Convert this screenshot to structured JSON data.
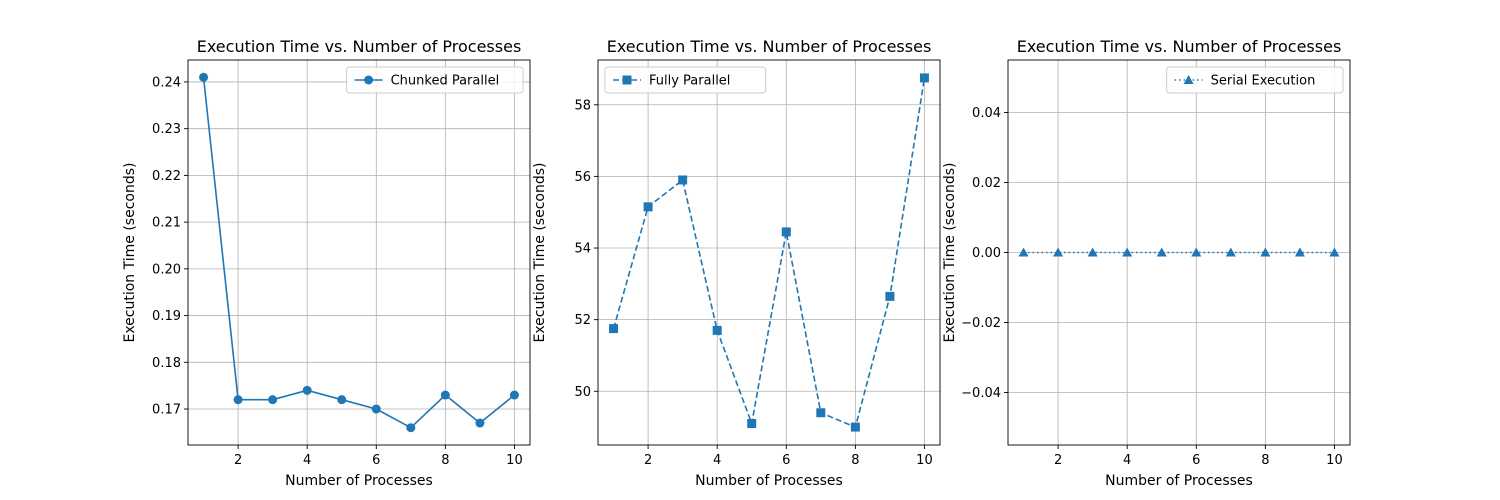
{
  "chart_data": [
    {
      "type": "line",
      "title": "Execution Time vs. Number of Processes",
      "xlabel": "Number of Processes",
      "ylabel": "Execution Time (seconds)",
      "x": [
        1,
        2,
        3,
        4,
        5,
        6,
        7,
        8,
        9,
        10
      ],
      "xlim": [
        0.55,
        10.45
      ],
      "ylim": [
        0.1623,
        0.2447
      ],
      "xticks": [
        2,
        4,
        6,
        8,
        10
      ],
      "yticks": [
        0.17,
        0.18,
        0.19,
        0.2,
        0.21,
        0.22,
        0.23,
        0.24
      ],
      "ytick_decimals": 2,
      "grid": true,
      "legend_position": "upper right",
      "series": [
        {
          "name": "Chunked Parallel",
          "values": [
            0.241,
            0.172,
            0.172,
            0.174,
            0.172,
            0.17,
            0.166,
            0.173,
            0.167,
            0.173
          ],
          "color": "#1f77b4",
          "line_style": "solid",
          "marker": "circle"
        }
      ]
    },
    {
      "type": "line",
      "title": "Execution Time vs. Number of Processes",
      "xlabel": "Number of Processes",
      "ylabel": "Execution Time (seconds)",
      "x": [
        1,
        2,
        3,
        4,
        5,
        6,
        7,
        8,
        9,
        10
      ],
      "xlim": [
        0.55,
        10.45
      ],
      "ylim": [
        48.5,
        59.25
      ],
      "xticks": [
        2,
        4,
        6,
        8,
        10
      ],
      "yticks": [
        50,
        52,
        54,
        56,
        58
      ],
      "ytick_decimals": 0,
      "grid": true,
      "legend_position": "upper left",
      "series": [
        {
          "name": "Fully Parallel",
          "values": [
            51.75,
            55.15,
            55.9,
            51.7,
            49.1,
            54.45,
            49.4,
            49.0,
            52.65,
            58.75
          ],
          "color": "#1f77b4",
          "line_style": "dashed",
          "marker": "square"
        }
      ]
    },
    {
      "type": "line",
      "title": "Execution Time vs. Number of Processes",
      "xlabel": "Number of Processes",
      "ylabel": "Execution Time (seconds)",
      "x": [
        1,
        2,
        3,
        4,
        5,
        6,
        7,
        8,
        9,
        10
      ],
      "xlim": [
        0.55,
        10.45
      ],
      "ylim": [
        -0.055,
        0.055
      ],
      "xticks": [
        2,
        4,
        6,
        8,
        10
      ],
      "yticks": [
        -0.04,
        -0.02,
        0.0,
        0.02,
        0.04
      ],
      "ytick_decimals": 2,
      "grid": true,
      "legend_position": "upper right",
      "series": [
        {
          "name": "Serial Execution",
          "values": [
            0,
            0,
            0,
            0,
            0,
            0,
            0,
            0,
            0,
            0
          ],
          "color": "#1f77b4",
          "line_style": "dotted",
          "marker": "triangle"
        }
      ]
    }
  ]
}
